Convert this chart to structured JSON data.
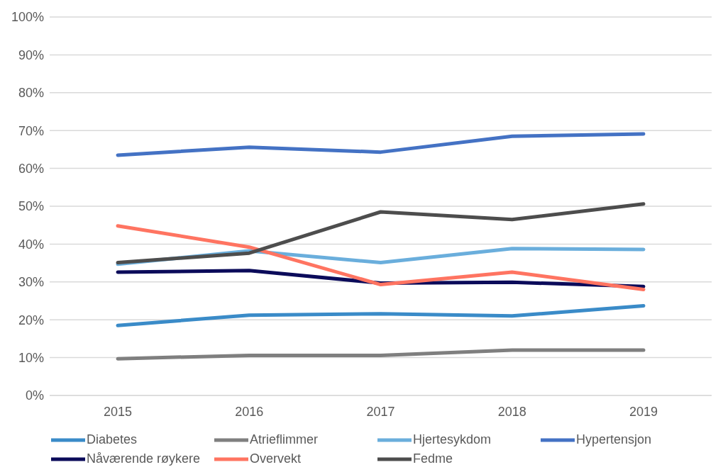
{
  "chart_data": {
    "type": "line",
    "categories": [
      "2015",
      "2016",
      "2017",
      "2018",
      "2019"
    ],
    "ylim": [
      0,
      100
    ],
    "yticks": [
      {
        "value": 0,
        "label": "0%"
      },
      {
        "value": 10,
        "label": "10%"
      },
      {
        "value": 20,
        "label": "20%"
      },
      {
        "value": 30,
        "label": "30%"
      },
      {
        "value": 40,
        "label": "40%"
      },
      {
        "value": 50,
        "label": "50%"
      },
      {
        "value": 60,
        "label": "60%"
      },
      {
        "value": 70,
        "label": "70%"
      },
      {
        "value": 80,
        "label": "80%"
      },
      {
        "value": 90,
        "label": "90%"
      },
      {
        "value": 100,
        "label": "100%"
      }
    ],
    "grid": "y",
    "legend": "bottom",
    "marker": "none",
    "line_style": "solid",
    "series": [
      {
        "name": "Diabetes",
        "color": "#3a8bc8",
        "values": [
          18.5,
          21.2,
          21.6,
          21.0,
          23.7
        ]
      },
      {
        "name": "Atrieflimmer",
        "color": "#7f7f7f",
        "values": [
          9.7,
          10.6,
          10.6,
          12.0,
          12.0
        ]
      },
      {
        "name": "Hjertesykdom",
        "color": "#6aaedc",
        "values": [
          34.7,
          38.2,
          35.1,
          38.8,
          38.6
        ]
      },
      {
        "name": "Hypertensjon",
        "color": "#4472c4",
        "values": [
          63.5,
          65.6,
          64.3,
          68.5,
          69.1
        ]
      },
      {
        "name": "Nåværende røykere",
        "color": "#0b0b5a",
        "values": [
          32.6,
          33.0,
          29.7,
          29.9,
          28.8
        ]
      },
      {
        "name": "Overvekt",
        "color": "#ff7461",
        "values": [
          44.8,
          39.2,
          29.3,
          32.6,
          28.0
        ]
      },
      {
        "name": "Fedme",
        "color": "#4d4d4d",
        "values": [
          35.1,
          37.6,
          48.5,
          46.5,
          50.6
        ]
      }
    ]
  }
}
